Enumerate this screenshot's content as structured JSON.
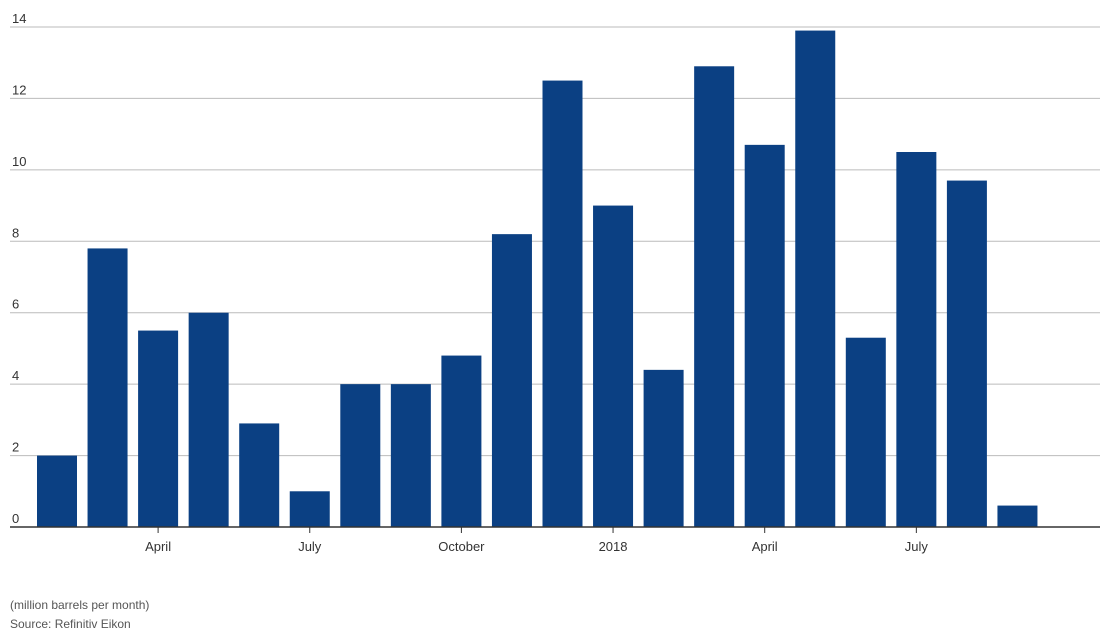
{
  "chart_data": {
    "type": "bar",
    "categories": [
      "2017-02",
      "2017-03",
      "2017-04",
      "2017-05",
      "2017-06",
      "2017-07",
      "2017-08",
      "2017-09",
      "2017-10",
      "2017-11",
      "2017-12",
      "2018-01",
      "2018-02",
      "2018-03",
      "2018-04",
      "2018-05",
      "2018-06",
      "2018-07",
      "2018-08",
      "2018-09"
    ],
    "values": [
      2.0,
      7.8,
      5.5,
      6.0,
      2.9,
      1.0,
      4.0,
      4.0,
      4.8,
      8.2,
      12.5,
      9.0,
      4.4,
      12.9,
      10.7,
      13.9,
      5.3,
      10.5,
      9.7,
      0.6
    ],
    "x_tick_labels": [
      {
        "label": "April",
        "category": "2017-04"
      },
      {
        "label": "July",
        "category": "2017-07"
      },
      {
        "label": "October",
        "category": "2017-10"
      },
      {
        "label": "2018",
        "category": "2018-01"
      },
      {
        "label": "April",
        "category": "2018-04"
      },
      {
        "label": "July",
        "category": "2018-07"
      }
    ],
    "y_ticks": [
      0,
      2,
      4,
      6,
      8,
      10,
      12,
      14
    ],
    "ylim": [
      0,
      14
    ],
    "grid": true,
    "bar_color": "#0b4083",
    "gridline_color": "#bbbbbb",
    "axis_color": "#333333"
  },
  "footer": {
    "unit_note": "(million barrels per month)",
    "source": "Source: Refinitiv Eikon"
  }
}
